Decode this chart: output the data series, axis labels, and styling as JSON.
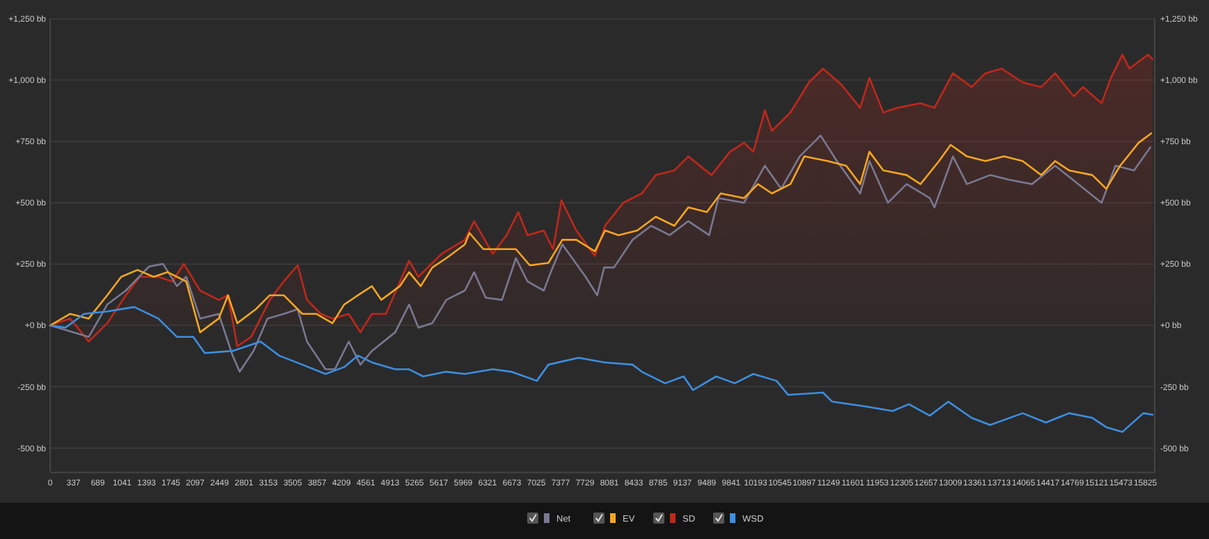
{
  "chart_data": {
    "type": "line",
    "xlim": [
      0,
      15960
    ],
    "xticks": [
      0,
      337,
      689,
      1041,
      1393,
      1745,
      2097,
      2449,
      2801,
      3153,
      3505,
      3857,
      4209,
      4561,
      4913,
      5265,
      5617,
      5969,
      6321,
      6673,
      7025,
      7377,
      7729,
      8081,
      8433,
      8785,
      9137,
      9489,
      9841,
      10193,
      10545,
      10897,
      11249,
      11601,
      11953,
      12305,
      12657,
      13009,
      13361,
      13713,
      14065,
      14417,
      14769,
      15121,
      15473,
      15825
    ],
    "ylim": [
      -600,
      1250
    ],
    "yticks": [
      {
        "value": -500,
        "label": "-500 bb"
      },
      {
        "value": -250,
        "label": "-250 bb"
      },
      {
        "value": 0,
        "label": "+0 bb"
      },
      {
        "value": 250,
        "label": "+250 bb"
      },
      {
        "value": 500,
        "label": "+500 bb"
      },
      {
        "value": 750,
        "label": "+750 bb"
      },
      {
        "value": 1000,
        "label": "+1,000 bb"
      },
      {
        "value": 1250,
        "label": "+1,250 bb"
      }
    ],
    "y2lim": [
      -600,
      1250
    ],
    "y2ticks": [
      {
        "value": -500,
        "label": "-500 bb"
      },
      {
        "value": -250,
        "label": "-250 bb"
      },
      {
        "value": 0,
        "label": "+0 bb"
      },
      {
        "value": 250,
        "label": "+250 bb"
      },
      {
        "value": 500,
        "label": "+500 bb"
      },
      {
        "value": 750,
        "label": "+750 bb"
      },
      {
        "value": 1000,
        "label": "+1,000 bb"
      },
      {
        "value": 1250,
        "label": "+1,250 bb"
      }
    ],
    "grid": "y",
    "legend": "bottom",
    "line_style": "solid",
    "series": [
      {
        "name": "Net",
        "color": "#7a7891",
        "x": [
          0,
          557,
          825,
          1094,
          1429,
          1631,
          1832,
          1966,
          2167,
          2436,
          2637,
          2738,
          2939,
          3140,
          3375,
          3577,
          3711,
          3979,
          4114,
          4315,
          4483,
          4650,
          4986,
          5187,
          5321,
          5522,
          5724,
          5992,
          6126,
          6294,
          6529,
          6730,
          6898,
          7133,
          7234,
          7401,
          7737,
          7905,
          8005,
          8147,
          8416,
          8684,
          8952,
          9221,
          9523,
          9657,
          10026,
          10328,
          10563,
          10831,
          11133,
          11368,
          11704,
          11838,
          12106,
          12375,
          12710,
          12777,
          13045,
          13247,
          13582,
          13851,
          14186,
          14522,
          14857,
          15193,
          15394,
          15662,
          15897
        ],
        "values": [
          0,
          -47,
          85,
          142,
          240,
          251,
          160,
          198,
          28,
          47,
          -123,
          -189,
          -104,
          28,
          47,
          66,
          -66,
          -179,
          -179,
          -66,
          -160,
          -104,
          -28,
          85,
          -9,
          9,
          104,
          142,
          217,
          113,
          104,
          274,
          179,
          142,
          217,
          330,
          198,
          123,
          236,
          236,
          349,
          406,
          368,
          425,
          368,
          519,
          500,
          651,
          557,
          689,
          774,
          670,
          538,
          670,
          500,
          576,
          519,
          481,
          689,
          576,
          613,
          594,
          576,
          651,
          576,
          500,
          651,
          632,
          726
        ]
      },
      {
        "name": "EV",
        "color": "#f5a623",
        "x": [
          0,
          289,
          557,
          825,
          1027,
          1262,
          1496,
          1698,
          1966,
          2167,
          2436,
          2570,
          2704,
          2972,
          3174,
          3375,
          3644,
          3845,
          4080,
          4248,
          4449,
          4650,
          4785,
          5053,
          5187,
          5355,
          5522,
          5724,
          5992,
          6059,
          6260,
          6529,
          6730,
          6931,
          7200,
          7401,
          7603,
          7871,
          8019,
          8214,
          8483,
          8751,
          9019,
          9221,
          9489,
          9690,
          10026,
          10227,
          10429,
          10697,
          10898,
          11234,
          11502,
          11704,
          11838,
          12039,
          12375,
          12576,
          12844,
          13012,
          13247,
          13515,
          13784,
          14052,
          14321,
          14522,
          14723,
          15059,
          15260,
          15461,
          15729,
          15910
        ],
        "values": [
          0,
          47,
          28,
          123,
          198,
          226,
          198,
          217,
          179,
          -28,
          28,
          123,
          9,
          66,
          123,
          123,
          47,
          47,
          9,
          85,
          123,
          160,
          104,
          160,
          217,
          160,
          236,
          274,
          330,
          377,
          311,
          311,
          311,
          245,
          255,
          349,
          349,
          302,
          387,
          368,
          387,
          443,
          406,
          481,
          462,
          538,
          519,
          576,
          538,
          576,
          689,
          670,
          651,
          576,
          708,
          632,
          613,
          576,
          670,
          736,
          689,
          670,
          689,
          670,
          613,
          670,
          632,
          613,
          557,
          651,
          745,
          783
        ]
      },
      {
        "name": "SD",
        "type": "area",
        "color": "#c0281b",
        "x": [
          0,
          289,
          557,
          825,
          1094,
          1295,
          1563,
          1765,
          1932,
          2167,
          2436,
          2570,
          2704,
          2905,
          3174,
          3375,
          3577,
          3711,
          3912,
          4080,
          4315,
          4483,
          4650,
          4851,
          5187,
          5321,
          5657,
          5992,
          6126,
          6395,
          6596,
          6764,
          6898,
          7133,
          7267,
          7388,
          7603,
          7871,
          8019,
          8281,
          8550,
          8751,
          9019,
          9221,
          9556,
          9824,
          10026,
          10160,
          10328,
          10429,
          10697,
          10965,
          11167,
          11435,
          11704,
          11838,
          12039,
          12240,
          12576,
          12777,
          13045,
          13314,
          13515,
          13750,
          14052,
          14321,
          14522,
          14790,
          14924,
          15193,
          15327,
          15494,
          15595,
          15863,
          15930
        ],
        "values": [
          0,
          28,
          -66,
          9,
          123,
          198,
          198,
          179,
          251,
          142,
          104,
          123,
          -85,
          -47,
          104,
          179,
          245,
          104,
          47,
          28,
          47,
          -28,
          47,
          47,
          264,
          198,
          292,
          349,
          425,
          292,
          368,
          462,
          368,
          387,
          311,
          510,
          387,
          283,
          406,
          500,
          538,
          613,
          632,
          689,
          613,
          708,
          745,
          708,
          877,
          793,
          868,
          991,
          1047,
          981,
          887,
          1009,
          868,
          887,
          906,
          887,
          1028,
          972,
          1028,
          1047,
          991,
          972,
          1028,
          934,
          972,
          906,
          1009,
          1104,
          1047,
          1104,
          1085
        ]
      },
      {
        "name": "WSD",
        "color": "#3d8ee0",
        "x": [
          0,
          221,
          490,
          825,
          1215,
          1563,
          1832,
          2067,
          2234,
          2637,
          3040,
          3308,
          3644,
          3979,
          4248,
          4449,
          4650,
          4986,
          5187,
          5388,
          5724,
          5992,
          6395,
          6663,
          7032,
          7200,
          7636,
          8013,
          8416,
          8550,
          8885,
          9154,
          9288,
          9623,
          9891,
          10160,
          10496,
          10663,
          11167,
          11301,
          11771,
          12173,
          12408,
          12710,
          12979,
          13314,
          13582,
          14052,
          14388,
          14723,
          15059,
          15260,
          15494,
          15796,
          15930
        ],
        "values": [
          0,
          -9,
          47,
          57,
          75,
          28,
          -47,
          -47,
          -113,
          -104,
          -66,
          -123,
          -160,
          -198,
          -170,
          -123,
          -151,
          -179,
          -179,
          -208,
          -189,
          -198,
          -179,
          -189,
          -226,
          -160,
          -132,
          -151,
          -160,
          -189,
          -236,
          -208,
          -264,
          -208,
          -236,
          -198,
          -226,
          -283,
          -274,
          -311,
          -330,
          -349,
          -321,
          -368,
          -311,
          -377,
          -406,
          -358,
          -396,
          -358,
          -377,
          -415,
          -434,
          -358,
          -364
        ]
      }
    ]
  }
}
